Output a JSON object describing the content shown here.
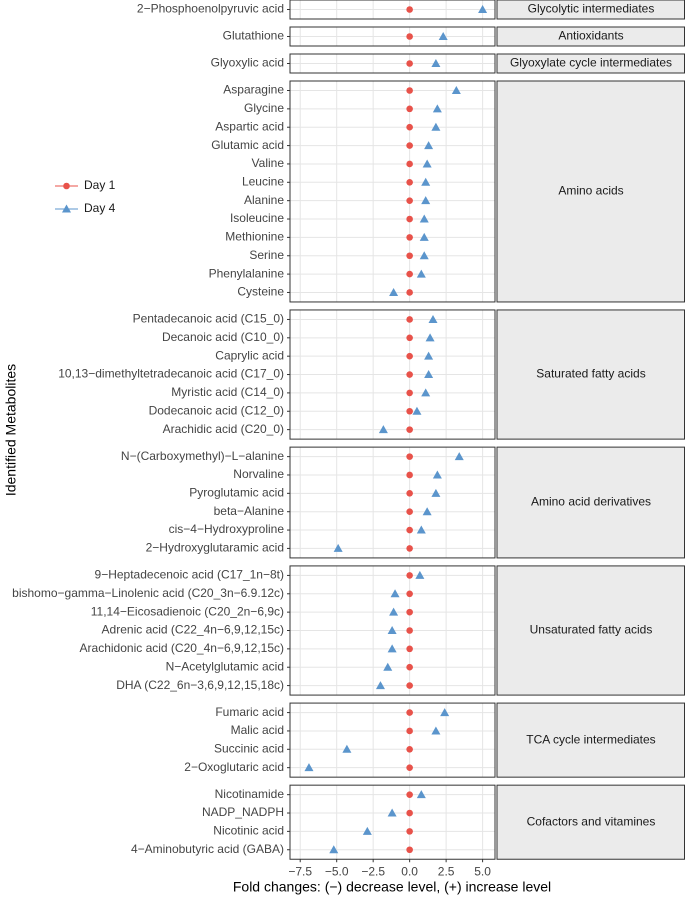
{
  "chart_data": {
    "type": "dot",
    "x_label": "Fold changes: (−) decrease level, (+) increase level",
    "y_label": "Identified Metabolites",
    "xlim": [
      -8.2,
      5.85
    ],
    "xticks": [
      {
        "value": -7.5,
        "label": "−7.5"
      },
      {
        "value": -5,
        "label": "−5.0"
      },
      {
        "value": -2.5,
        "label": "−2.5"
      },
      {
        "value": 0,
        "label": "0.0"
      },
      {
        "value": 2.5,
        "label": "2.5"
      },
      {
        "value": 5,
        "label": "5.0"
      }
    ],
    "grid": true,
    "series": [
      {
        "name": "Day 1",
        "color": "#e8524a",
        "marker": "circle"
      },
      {
        "name": "Day 4",
        "color": "#5b95cc",
        "marker": "triangle"
      }
    ],
    "facets": [
      {
        "label": "Glycolytic intermediates",
        "categories": [
          "2−Phosphoenolpyruvic acid"
        ],
        "series": [
          {
            "values": [
              0
            ]
          },
          {
            "values": [
              5.0
            ]
          }
        ]
      },
      {
        "label": "Antioxidants",
        "categories": [
          "Glutathione"
        ],
        "series": [
          {
            "values": [
              0
            ]
          },
          {
            "values": [
              2.3
            ]
          }
        ]
      },
      {
        "label": "Glyoxylate cycle intermediates",
        "categories": [
          "Glyoxylic acid"
        ],
        "series": [
          {
            "values": [
              0
            ]
          },
          {
            "values": [
              1.8
            ]
          }
        ]
      },
      {
        "label": "Amino acids",
        "categories": [
          "Asparagine",
          "Glycine",
          "Aspartic acid",
          "Glutamic acid",
          "Valine",
          "Leucine",
          "Alanine",
          "Isoleucine",
          "Methionine",
          "Serine",
          "Phenylalanine",
          "Cysteine"
        ],
        "series": [
          {
            "values": [
              0,
              0,
              0,
              0,
              0,
              0,
              0,
              0,
              0,
              0,
              0,
              0
            ]
          },
          {
            "values": [
              3.2,
              1.9,
              1.8,
              1.3,
              1.2,
              1.1,
              1.1,
              1.0,
              1.0,
              1.0,
              0.8,
              -1.1
            ]
          }
        ]
      },
      {
        "label": "Saturated fatty acids",
        "categories": [
          "Pentadecanoic acid (C15_0)",
          "Decanoic acid (C10_0)",
          "Caprylic acid",
          "10,13−dimethyltetradecanoic acid  (C17_0)",
          "Myristic acid (C14_0)",
          "Dodecanoic acid (C12_0)",
          "Arachidic acid (C20_0)"
        ],
        "series": [
          {
            "values": [
              0,
              0,
              0,
              0,
              0,
              0,
              0
            ]
          },
          {
            "values": [
              1.6,
              1.4,
              1.3,
              1.3,
              1.1,
              0.5,
              -1.8
            ]
          }
        ]
      },
      {
        "label": "Amino acid derivatives",
        "categories": [
          "N−(Carboxymethyl)−L−alanine",
          "Norvaline",
          "Pyroglutamic acid",
          "beta−Alanine",
          "cis−4−Hydroxyproline",
          "2−Hydroxyglutaramic acid"
        ],
        "series": [
          {
            "values": [
              0,
              0,
              0,
              0,
              0,
              0
            ]
          },
          {
            "values": [
              3.4,
              1.9,
              1.8,
              1.2,
              0.8,
              -4.9
            ]
          }
        ]
      },
      {
        "label": "Unsaturated fatty acids",
        "categories": [
          "9−Heptadecenoic acid (C17_1n−8t)",
          "bishomo−gamma−Linolenic acid (C20_3n−6.9.12c)",
          "11,14−Eicosadienoic (C20_2n−6,9c)",
          "Adrenic acid (C22_4n−6,9,12,15c)",
          "Arachidonic acid (C20_4n−6,9,12,15c)",
          "N−Acetylglutamic acid",
          "DHA (C22_6n−3,6,9,12,15,18c)"
        ],
        "series": [
          {
            "values": [
              0,
              0,
              0,
              0,
              0,
              0,
              0
            ]
          },
          {
            "values": [
              0.7,
              -1.0,
              -1.1,
              -1.2,
              -1.2,
              -1.5,
              -2.0
            ]
          }
        ]
      },
      {
        "label": "TCA cycle intermediates",
        "categories": [
          "Fumaric acid",
          "Malic acid",
          "Succinic acid",
          "2−Oxoglutaric acid"
        ],
        "series": [
          {
            "values": [
              0,
              0,
              0,
              0
            ]
          },
          {
            "values": [
              2.4,
              1.8,
              -4.3,
              -6.9
            ]
          }
        ]
      },
      {
        "label": "Cofactors and vitamines",
        "categories": [
          "Nicotinamide",
          "NADP_NADPH",
          "Nicotinic acid",
          "4−Aminobutyric acid (GABA)"
        ],
        "series": [
          {
            "values": [
              0,
              0,
              0,
              0
            ]
          },
          {
            "values": [
              0.8,
              -1.2,
              -2.9,
              -5.2
            ]
          }
        ]
      }
    ]
  }
}
